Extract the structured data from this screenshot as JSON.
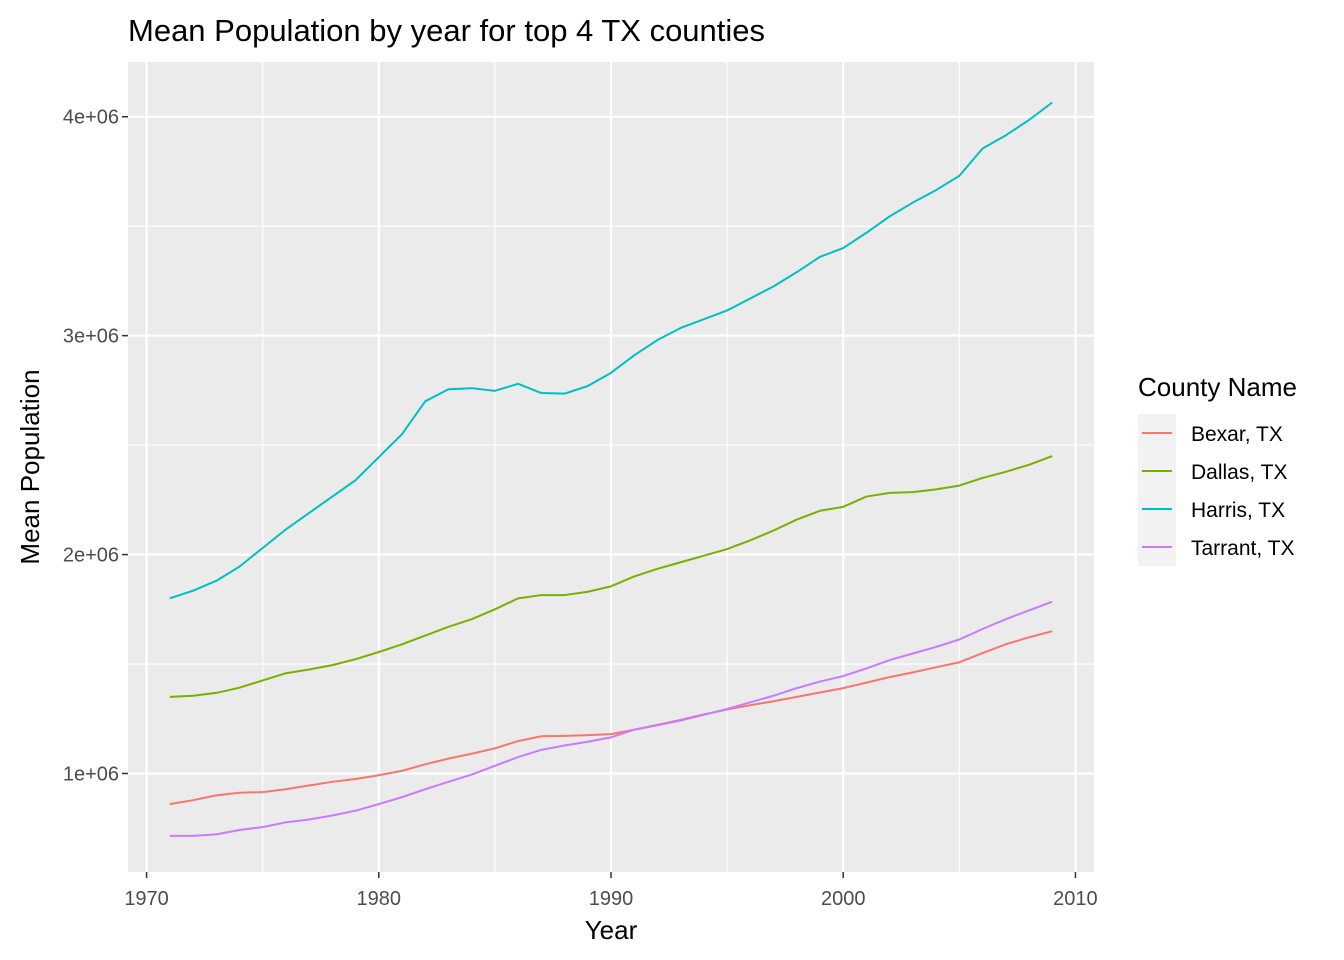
{
  "chart_data": {
    "type": "line",
    "title": "Mean Population by year for top 4 TX counties",
    "xlabel": "Year",
    "ylabel": "Mean  Population",
    "xlim": [
      1969.2,
      2010.8
    ],
    "ylim": [
      550000,
      4250000
    ],
    "x_ticks": [
      1970,
      1980,
      1990,
      2000,
      2010
    ],
    "x_tick_labels": [
      "1970",
      "1980",
      "1990",
      "2000",
      "2010"
    ],
    "y_ticks": [
      1000000,
      2000000,
      3000000,
      4000000
    ],
    "y_tick_labels": [
      "1e+06",
      "2e+06",
      "3e+06",
      "4e+06"
    ],
    "grid": true,
    "panel_background": "#ebebeb",
    "grid_color": "#ffffff",
    "legend": {
      "title": "County Name",
      "position": "right",
      "key_background": "#f2f2f2"
    },
    "x": [
      1971,
      1972,
      1973,
      1974,
      1975,
      1976,
      1977,
      1978,
      1979,
      1980,
      1981,
      1982,
      1983,
      1984,
      1985,
      1986,
      1987,
      1988,
      1989,
      1990,
      1991,
      1992,
      1993,
      1994,
      1995,
      1996,
      1997,
      1998,
      1999,
      2000,
      2001,
      2002,
      2003,
      2004,
      2005,
      2006,
      2007,
      2008,
      2009
    ],
    "series": [
      {
        "name": "Bexar, TX",
        "color": "#f8766d",
        "values": [
          860000,
          878000,
          900000,
          912000,
          915000,
          928000,
          945000,
          962000,
          975000,
          992000,
          1012000,
          1042000,
          1068000,
          1090000,
          1115000,
          1148000,
          1170000,
          1172000,
          1175000,
          1180000,
          1200000,
          1222000,
          1245000,
          1270000,
          1292000,
          1312000,
          1330000,
          1350000,
          1370000,
          1390000,
          1415000,
          1440000,
          1462000,
          1485000,
          1508000,
          1550000,
          1590000,
          1622000,
          1650000
        ]
      },
      {
        "name": "Dallas, TX",
        "color": "#7cae00",
        "values": [
          1350000,
          1355000,
          1368000,
          1392000,
          1425000,
          1458000,
          1475000,
          1495000,
          1522000,
          1555000,
          1590000,
          1630000,
          1670000,
          1705000,
          1750000,
          1800000,
          1815000,
          1815000,
          1830000,
          1855000,
          1900000,
          1935000,
          1965000,
          1995000,
          2025000,
          2065000,
          2110000,
          2160000,
          2200000,
          2218000,
          2265000,
          2282000,
          2285000,
          2298000,
          2315000,
          2350000,
          2378000,
          2410000,
          2450000
        ]
      },
      {
        "name": "Harris, TX",
        "color": "#00bfc4",
        "values": [
          1800000,
          1835000,
          1880000,
          1945000,
          2030000,
          2115000,
          2190000,
          2265000,
          2340000,
          2445000,
          2550000,
          2700000,
          2755000,
          2760000,
          2748000,
          2780000,
          2738000,
          2735000,
          2770000,
          2830000,
          2910000,
          2980000,
          3035000,
          3075000,
          3115000,
          3170000,
          3225000,
          3290000,
          3360000,
          3400000,
          3470000,
          3545000,
          3608000,
          3665000,
          3730000,
          3855000,
          3915000,
          3985000,
          4065000
        ]
      },
      {
        "name": "Tarrant, TX",
        "color": "#c77cff",
        "values": [
          715000,
          715000,
          722000,
          742000,
          755000,
          777000,
          790000,
          808000,
          830000,
          860000,
          892000,
          928000,
          962000,
          995000,
          1035000,
          1075000,
          1108000,
          1128000,
          1145000,
          1165000,
          1200000,
          1220000,
          1242000,
          1268000,
          1295000,
          1325000,
          1355000,
          1390000,
          1420000,
          1445000,
          1480000,
          1518000,
          1548000,
          1578000,
          1612000,
          1660000,
          1705000,
          1745000,
          1785000
        ]
      }
    ]
  }
}
